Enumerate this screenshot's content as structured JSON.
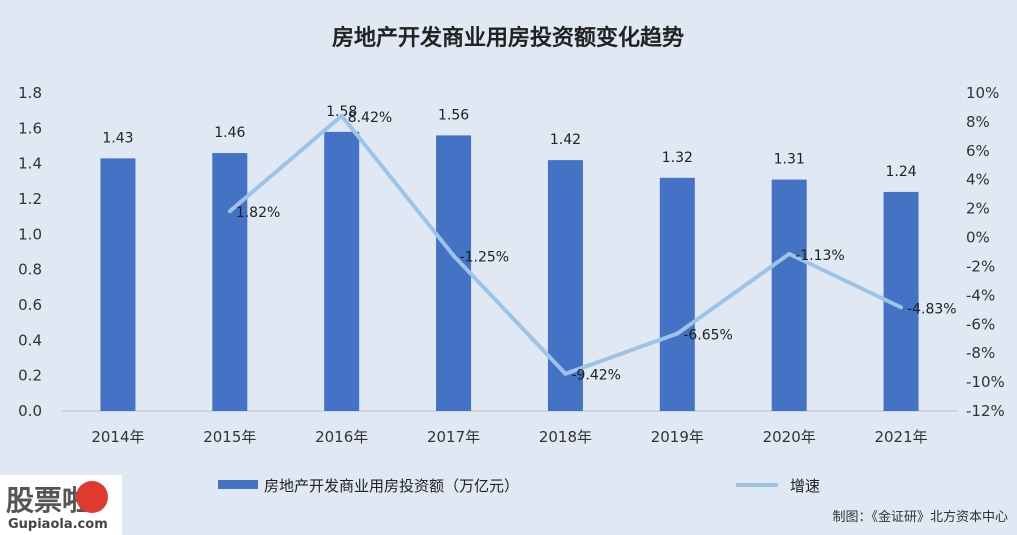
{
  "chart_data": {
    "type": "bar",
    "title": "房地产开发商业用房投资额变化趋势",
    "categories": [
      "2014年",
      "2015年",
      "2016年",
      "2017年",
      "2018年",
      "2019年",
      "2020年",
      "2021年"
    ],
    "series": [
      {
        "name": "房地产开发商业用房投资额（万亿元）",
        "type": "bar",
        "axis": "left",
        "values": [
          1.43,
          1.46,
          1.58,
          1.56,
          1.42,
          1.32,
          1.31,
          1.24
        ],
        "labels": [
          "1.43",
          "1.46",
          "1.58",
          "1.56",
          "1.42",
          "1.32",
          "1.31",
          "1.24"
        ],
        "color": "#4472c4"
      },
      {
        "name": "增速",
        "type": "line",
        "axis": "right",
        "values": [
          null,
          1.82,
          8.42,
          -1.25,
          -9.42,
          -6.65,
          -1.13,
          -4.83
        ],
        "labels": [
          "",
          "1.82%",
          "8.42%",
          "-1.25%",
          "-9.42%",
          "-6.65%",
          "-1.13%",
          "-4.83%"
        ],
        "color": "#9dc3e6"
      }
    ],
    "left_axis": {
      "ylim": [
        0,
        1.8
      ],
      "ticks": [
        "0.0",
        "0.2",
        "0.4",
        "0.6",
        "0.8",
        "1.0",
        "1.2",
        "1.4",
        "1.6",
        "1.8"
      ]
    },
    "right_axis": {
      "ylim": [
        -12,
        10
      ],
      "ticks": [
        "-12%",
        "-10%",
        "-8%",
        "-6%",
        "-4%",
        "-2%",
        "0%",
        "2%",
        "4%",
        "6%",
        "8%",
        "10%"
      ]
    },
    "legend_position": "bottom",
    "grid": false
  },
  "credit": "制图：《金证研》北方资本中心",
  "watermark": {
    "main": "股票啦",
    "sub": "Gupiaola.com"
  }
}
